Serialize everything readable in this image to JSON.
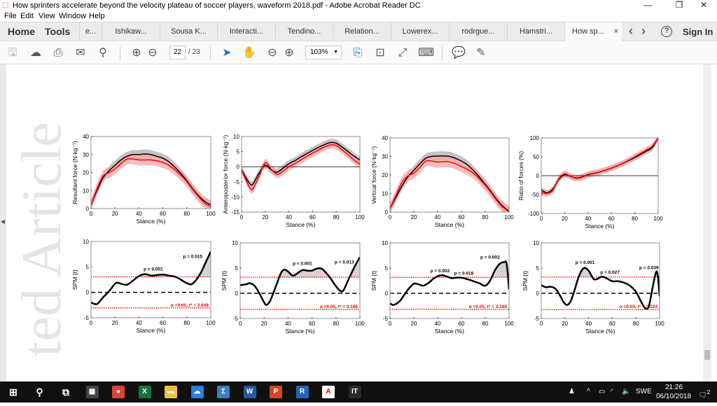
{
  "window": {
    "title": "How sprinters accelerate beyond the velocity plateau of soccer players, waveform 2018.pdf - Adobe Acrobat Reader DC",
    "min": "—",
    "max": "❐",
    "close": "✕"
  },
  "menu": [
    "File",
    "Edit",
    "View",
    "Window",
    "Help"
  ],
  "nav": {
    "home": "Home",
    "tools": "Tools",
    "sign_in": "Sign In",
    "help": "?",
    "prev": "‹",
    "next": "›"
  },
  "tabs": [
    {
      "label": "e..."
    },
    {
      "label": "Ishikaw..."
    },
    {
      "label": "Sousa K..."
    },
    {
      "label": "Interacti..."
    },
    {
      "label": "Tendino..."
    },
    {
      "label": "Relation..."
    },
    {
      "label": "Lowerex..."
    },
    {
      "label": "rodrgue..."
    },
    {
      "label": "Hamstri..."
    },
    {
      "label": "How sp...",
      "active": true,
      "close": "×"
    }
  ],
  "toolbar": {
    "page_current": "22",
    "page_total": "/ 23",
    "zoom": "103%"
  },
  "watermark": "ted Article",
  "colors": {
    "black_series": "#000000",
    "red_series": "#ff0000",
    "black_band": "#b4b4b4",
    "red_band": "#f7a8a8",
    "threshold": "#ff0000"
  },
  "chart_data": [
    {
      "type": "line",
      "ylabel": "Resultant force (N·kg⁻¹)",
      "xlabel": "Stance (%)",
      "xlim": [
        0,
        100
      ],
      "ylim": [
        0,
        40
      ],
      "yticks": [
        0,
        10,
        20,
        30,
        40
      ],
      "xticks": [
        0,
        20,
        40,
        60,
        80,
        100
      ],
      "x": [
        0,
        5,
        10,
        15,
        20,
        25,
        30,
        35,
        40,
        45,
        50,
        55,
        60,
        65,
        70,
        75,
        80,
        85,
        90,
        95,
        100
      ],
      "series": [
        {
          "color": "black",
          "band": 2.5,
          "values": [
            2,
            10,
            17,
            21,
            24,
            27,
            29,
            30,
            30,
            30.3,
            30,
            29,
            28,
            26,
            23,
            19.5,
            15.5,
            11,
            7,
            4,
            2
          ]
        },
        {
          "color": "red",
          "band": 3,
          "values": [
            2,
            11,
            18,
            20,
            22,
            25,
            27.5,
            27.5,
            27,
            27,
            27,
            26.5,
            25.5,
            24,
            21.5,
            18.5,
            15,
            10.5,
            6.5,
            3,
            1
          ]
        }
      ]
    },
    {
      "type": "line",
      "ylabel": "Anteroposterior force (N·kg⁻¹)",
      "xlabel": "Stance (%)",
      "xlim": [
        0,
        100
      ],
      "ylim": [
        -15,
        10
      ],
      "yticks": [
        -15,
        -10,
        -5,
        0,
        5,
        10
      ],
      "xticks": [
        0,
        20,
        40,
        60,
        80,
        100
      ],
      "zero_line": true,
      "x": [
        0,
        5,
        8,
        10,
        15,
        20,
        25,
        30,
        35,
        40,
        45,
        50,
        55,
        60,
        65,
        70,
        75,
        80,
        85,
        90,
        95,
        100
      ],
      "series": [
        {
          "color": "black",
          "band": 1.2,
          "values": [
            -1,
            -4.5,
            -6,
            -5.5,
            -2,
            0.5,
            -1,
            -1.8,
            -0.5,
            1,
            2,
            3.2,
            4.3,
            5.4,
            6.4,
            7.3,
            8,
            7.8,
            6.5,
            5,
            3.5,
            2.2
          ]
        },
        {
          "color": "red",
          "band": 1.3,
          "values": [
            -1,
            -5.5,
            -7.5,
            -7,
            -3,
            1.3,
            -0.8,
            -2.5,
            -1.5,
            0,
            1,
            2.2,
            3.4,
            4.5,
            5.5,
            6.5,
            7.2,
            7,
            5.5,
            4,
            2.2,
            0.8
          ]
        }
      ]
    },
    {
      "type": "line",
      "ylabel": "Vertical force (N·kg⁻¹)",
      "xlabel": "Stance (%)",
      "xlim": [
        0,
        100
      ],
      "ylim": [
        0,
        40
      ],
      "yticks": [
        0,
        10,
        20,
        30,
        40
      ],
      "xticks": [
        0,
        20,
        40,
        60,
        80,
        100
      ],
      "x": [
        0,
        5,
        10,
        15,
        20,
        25,
        30,
        35,
        40,
        45,
        50,
        55,
        60,
        65,
        70,
        75,
        80,
        85,
        90,
        95,
        100
      ],
      "series": [
        {
          "color": "black",
          "band": 2.5,
          "values": [
            2,
            8,
            14,
            19,
            22.5,
            26,
            29,
            30,
            30.2,
            30.3,
            30,
            29,
            27.5,
            25.5,
            22.5,
            19,
            15,
            11,
            6.5,
            3,
            0.5
          ]
        },
        {
          "color": "red",
          "band": 3,
          "values": [
            2,
            9,
            16,
            19.5,
            21,
            24,
            27.5,
            27.5,
            27,
            27.2,
            27,
            26,
            24.5,
            23,
            21,
            18,
            14.5,
            10.5,
            6,
            2.5,
            0.3
          ]
        }
      ]
    },
    {
      "type": "line",
      "ylabel": "Ratio of forces (%)",
      "xlabel": "Stance (%)",
      "xlim": [
        0,
        100
      ],
      "ylim": [
        -100,
        100
      ],
      "yticks": [
        -100,
        -50,
        0,
        50,
        100
      ],
      "xticks": [
        0,
        20,
        40,
        60,
        80,
        100
      ],
      "zero_line": true,
      "x": [
        0,
        5,
        10,
        15,
        20,
        25,
        30,
        35,
        40,
        50,
        60,
        70,
        80,
        90,
        95,
        100
      ],
      "series": [
        {
          "color": "black",
          "band": 8,
          "values": [
            -38,
            -45,
            -35,
            -10,
            3,
            -2,
            -6,
            -3,
            3,
            10,
            20,
            33,
            48,
            65,
            75,
            100
          ]
        },
        {
          "color": "red",
          "band": 8,
          "values": [
            -45,
            -47,
            -38,
            -8,
            5,
            -2,
            -7,
            -4,
            2,
            10,
            20,
            33,
            50,
            68,
            78,
            100
          ]
        }
      ]
    },
    {
      "type": "line",
      "ylabel": "SPM {t}",
      "xlabel": "Stance (%)",
      "xlim": [
        0,
        100
      ],
      "ylim": [
        -5,
        10
      ],
      "yticks": [
        -5,
        0,
        5,
        10
      ],
      "xticks": [
        0,
        20,
        40,
        60,
        80,
        100
      ],
      "threshold": 3.048,
      "threshold_label": "α =0.05,     t* = 3.048",
      "x": [
        0,
        5,
        10,
        15,
        20,
        22,
        25,
        30,
        35,
        40,
        45,
        50,
        55,
        60,
        65,
        70,
        75,
        80,
        84,
        88,
        92,
        96,
        100
      ],
      "values": [
        -2,
        -2.3,
        -1,
        0.2,
        1.7,
        1.9,
        1.7,
        1.5,
        2.3,
        3.2,
        3.6,
        3.3,
        3.4,
        3.5,
        3.3,
        3.1,
        2.5,
        1.8,
        1.6,
        2.5,
        4,
        6,
        8
      ],
      "annotations": [
        {
          "text": "p < 0.001",
          "x": 52,
          "y": 4.3
        },
        {
          "text": "p = 0.015",
          "x": 85,
          "y": 6.8
        }
      ]
    },
    {
      "type": "line",
      "ylabel": "SPM {t}",
      "xlabel": "Stance (%)",
      "xlim": [
        0,
        100
      ],
      "ylim": [
        -5,
        10
      ],
      "yticks": [
        -5,
        0,
        5,
        10
      ],
      "xticks": [
        0,
        20,
        40,
        60,
        80,
        100
      ],
      "threshold": 3.186,
      "threshold_label": "α =0.05,     t* = 3.186",
      "x": [
        0,
        5,
        8,
        12,
        16,
        20,
        22,
        25,
        30,
        34,
        37,
        40,
        44,
        48,
        52,
        56,
        60,
        64,
        68,
        72,
        76,
        80,
        83,
        86,
        90,
        95,
        100
      ],
      "values": [
        1.6,
        1.8,
        2,
        1.5,
        0,
        -1.8,
        -2.3,
        -1.5,
        1.5,
        4,
        4.7,
        4.3,
        3.5,
        4,
        4.6,
        4.5,
        4.5,
        4.9,
        4.9,
        4,
        2.8,
        1.4,
        0.6,
        0.5,
        2.5,
        5,
        7.2
      ],
      "annotations": [
        {
          "text": "p < 0.001",
          "x": 52,
          "y": 5.6
        },
        {
          "text": "p = 0.013",
          "x": 87,
          "y": 5.9
        }
      ]
    },
    {
      "type": "line",
      "ylabel": "SPM {t}",
      "xlabel": "Stance (%)",
      "xlim": [
        0,
        100
      ],
      "ylim": [
        -5,
        10
      ],
      "yticks": [
        -5,
        0,
        5,
        10
      ],
      "xticks": [
        0,
        20,
        40,
        60,
        80,
        100
      ],
      "threshold": 3.169,
      "threshold_label": "α =0.05,     t* = 3.169",
      "x": [
        0,
        3,
        8,
        12,
        16,
        20,
        22,
        25,
        28,
        32,
        36,
        40,
        44,
        48,
        52,
        56,
        60,
        65,
        70,
        75,
        80,
        84,
        88,
        92,
        96,
        98,
        100
      ],
      "values": [
        -2,
        -2.3,
        -1.6,
        -0.3,
        1,
        1.9,
        1.9,
        1.7,
        1.5,
        2,
        2.8,
        3.4,
        3.6,
        3.3,
        3,
        3.1,
        3.1,
        2.8,
        2.4,
        2,
        1.5,
        2.5,
        4.5,
        5.8,
        6.2,
        5.8,
        0.8
      ],
      "annotations": [
        {
          "text": "p = 0.002",
          "x": 42,
          "y": 4.2
        },
        {
          "text": "p = 0.018",
          "x": 62,
          "y": 3.7
        },
        {
          "text": "p = 0.002",
          "x": 84,
          "y": 6.9
        }
      ]
    },
    {
      "type": "line",
      "ylabel": "SPM {t}",
      "xlabel": "Stance (%)",
      "xlim": [
        0,
        100
      ],
      "ylim": [
        -5,
        10
      ],
      "yticks": [
        -5,
        0,
        5,
        10
      ],
      "xticks": [
        0,
        20,
        40,
        60,
        80,
        100
      ],
      "threshold": 3.224,
      "threshold_label": "α =0.05,     t* = 3.224",
      "x": [
        0,
        4,
        8,
        12,
        16,
        19,
        22,
        25,
        28,
        32,
        36,
        40,
        44,
        47,
        51,
        55,
        60,
        65,
        70,
        75,
        80,
        84,
        88,
        91,
        94,
        97,
        98.5,
        100
      ],
      "values": [
        1.6,
        1.2,
        1.3,
        0.9,
        -0.5,
        -1.8,
        -2.3,
        -1.5,
        0.5,
        3.5,
        5,
        4.5,
        2.9,
        2.8,
        3.3,
        3,
        2.4,
        2.4,
        2.1,
        1.5,
        0.3,
        -1.5,
        -3,
        -2.5,
        1,
        4.2,
        3.5,
        -0.6
      ],
      "annotations": [
        {
          "text": "p = 0.001",
          "x": 37,
          "y": 5.8
        },
        {
          "text": "p = 0.027",
          "x": 58,
          "y": 3.9
        },
        {
          "text": "p = 0.039",
          "x": 91,
          "y": 4.8
        }
      ]
    }
  ],
  "taskbar": {
    "time": "21:26",
    "date": "06/10/2018",
    "lang": "SWE",
    "notifications": "2",
    "apps": [
      {
        "name": "start"
      },
      {
        "name": "search"
      },
      {
        "name": "task-view"
      },
      {
        "name": "calculator"
      },
      {
        "name": "chrome"
      },
      {
        "name": "excel",
        "label": "X"
      },
      {
        "name": "file-explorer"
      },
      {
        "name": "cloud"
      },
      {
        "name": "sigma"
      },
      {
        "name": "word",
        "label": "W"
      },
      {
        "name": "powerpoint",
        "label": "P"
      },
      {
        "name": "r",
        "label": "R"
      },
      {
        "name": "acrobat"
      },
      {
        "name": "app-it",
        "label": "IT"
      }
    ]
  }
}
